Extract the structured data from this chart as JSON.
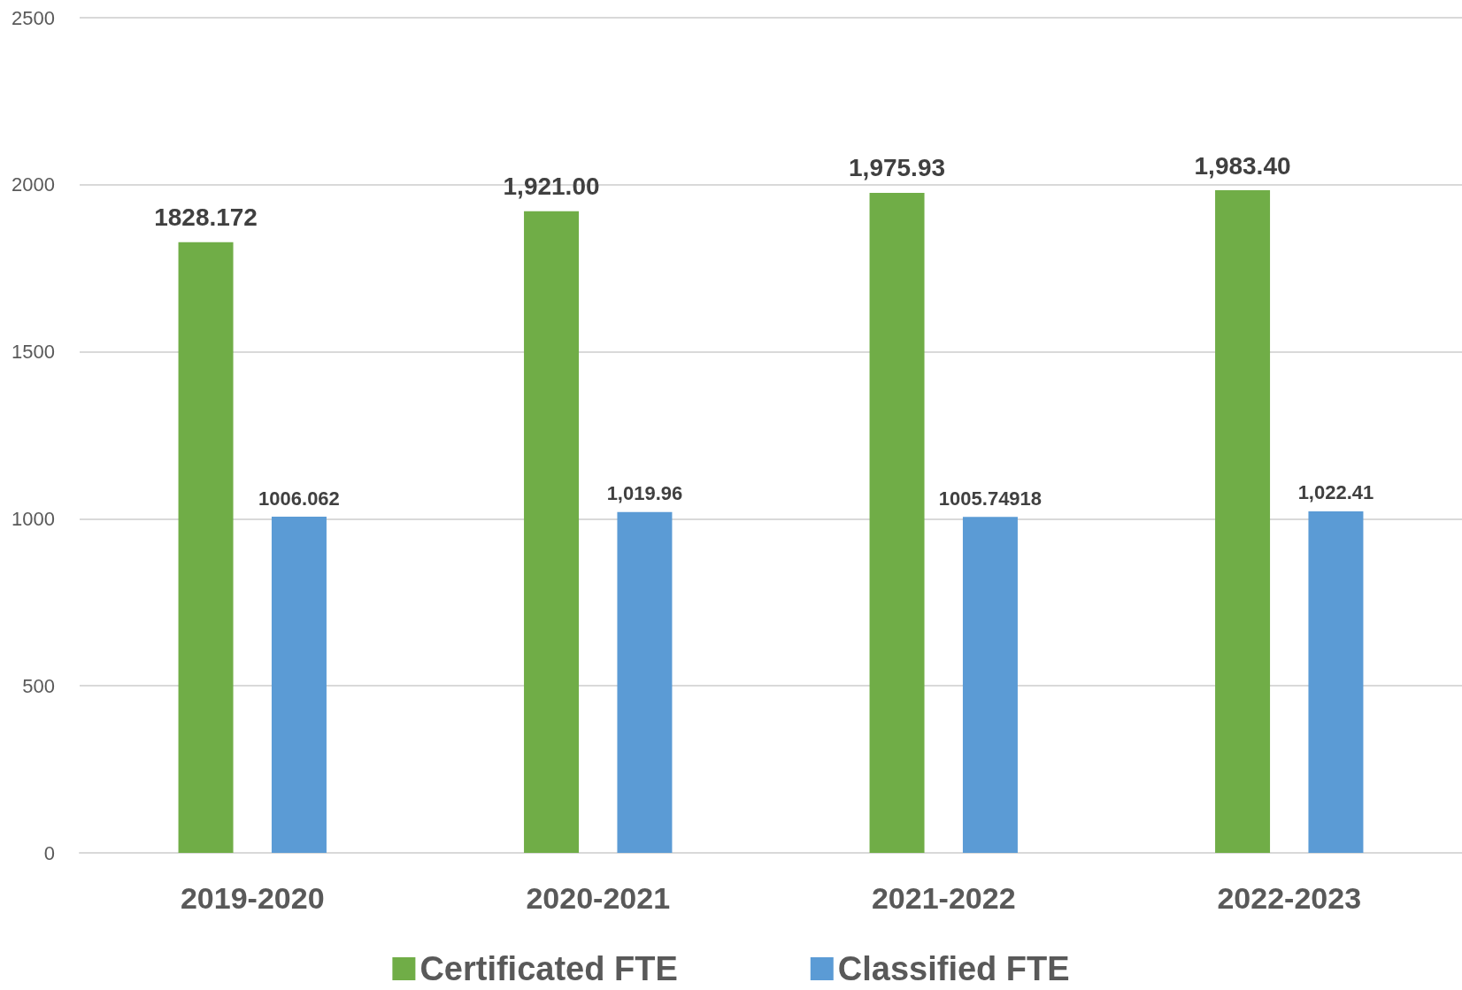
{
  "chart_data": {
    "type": "bar",
    "categories": [
      "2019-2020",
      "2020-2021",
      "2021-2022",
      "2022-2023"
    ],
    "series": [
      {
        "name": "Certificated FTE",
        "color": "#70ad47",
        "values": [
          1828.172,
          1921.0,
          1975.93,
          1983.4
        ],
        "value_labels": [
          "1828.172",
          "1,921.00",
          "1,975.93",
          "1,983.40"
        ]
      },
      {
        "name": "Classified FTE",
        "color": "#5b9bd5",
        "values": [
          1006.062,
          1019.96,
          1005.74918,
          1022.41
        ],
        "value_labels": [
          "1006.062",
          "1,019.96",
          "1005.74918",
          "1,022.41"
        ]
      }
    ],
    "ylim": [
      0,
      2500
    ],
    "yticks": [
      0,
      500,
      1000,
      1500,
      2000,
      2500
    ],
    "grid": "y",
    "legend": "bottom"
  }
}
